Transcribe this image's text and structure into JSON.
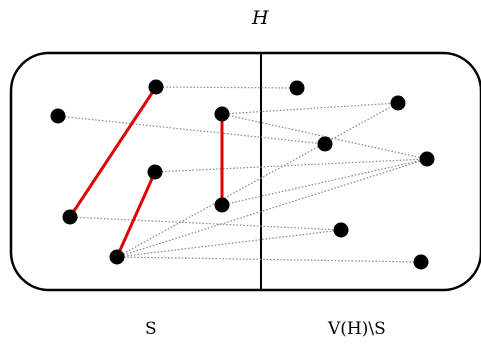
{
  "labels": {
    "title": "H",
    "left": "S",
    "right": "V(H)\\S"
  },
  "colors": {
    "stroke": "#000000",
    "dotted_edge": "#8c8c8c",
    "matching_edge": "#e00000",
    "vertex": "#000000"
  },
  "vertices": [
    "a",
    "b",
    "c",
    "d",
    "e",
    "f",
    "g",
    "h",
    "i",
    "j",
    "k",
    "l",
    "m",
    "n"
  ],
  "matching_edges": [
    [
      "b",
      "f"
    ],
    [
      "c",
      "g"
    ],
    [
      "e",
      "d"
    ]
  ],
  "cross_edges": [
    [
      "b",
      "i"
    ],
    [
      "a",
      "k"
    ],
    [
      "d",
      "j"
    ],
    [
      "d",
      "l"
    ],
    [
      "c",
      "l"
    ],
    [
      "e",
      "l"
    ],
    [
      "f",
      "m"
    ],
    [
      "g",
      "j"
    ],
    [
      "g",
      "l"
    ],
    [
      "g",
      "m"
    ],
    [
      "g",
      "n"
    ]
  ]
}
